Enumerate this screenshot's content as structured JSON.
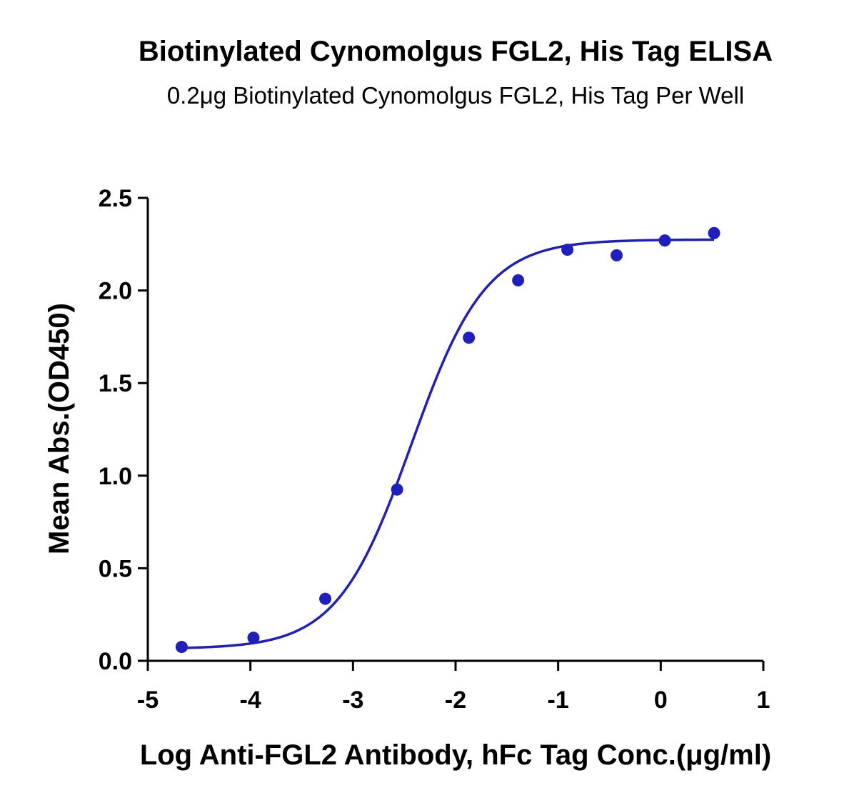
{
  "chart_data": {
    "type": "scatter",
    "title": "Biotinylated Cynomolgus FGL2, His Tag ELISA",
    "subtitle": "0.2μg Biotinylated Cynomolgus FGL2, His Tag Per Well",
    "xlabel": "Log Anti-FGL2 Antibody, hFc Tag Conc.(μg/ml)",
    "ylabel": "Mean Abs.(OD450)",
    "xlim": [
      -5,
      1
    ],
    "ylim": [
      0,
      2.5
    ],
    "x_ticks": [
      "-5",
      "-4",
      "-3",
      "-2",
      "-1",
      "0",
      "1"
    ],
    "y_ticks": [
      "0.0",
      "0.5",
      "1.0",
      "1.5",
      "2.0",
      "2.5"
    ],
    "grid": false,
    "color": "#1f1fc0",
    "series": [
      {
        "points": [
          {
            "x": -4.67,
            "y": 0.075
          },
          {
            "x": -3.97,
            "y": 0.125
          },
          {
            "x": -3.27,
            "y": 0.335
          },
          {
            "x": -2.57,
            "y": 0.925
          },
          {
            "x": -1.87,
            "y": 1.745
          },
          {
            "x": -1.39,
            "y": 2.055
          },
          {
            "x": -0.91,
            "y": 2.22
          },
          {
            "x": -0.43,
            "y": 2.19
          },
          {
            "x": 0.04,
            "y": 2.27
          },
          {
            "x": 0.52,
            "y": 2.31
          }
        ],
        "fit": {
          "model": "4PL",
          "bottom": 0.065,
          "top": 2.275,
          "logEC50": -2.43,
          "hill": 1.2,
          "x_range": [
            -4.67,
            0.52
          ]
        }
      }
    ]
  }
}
